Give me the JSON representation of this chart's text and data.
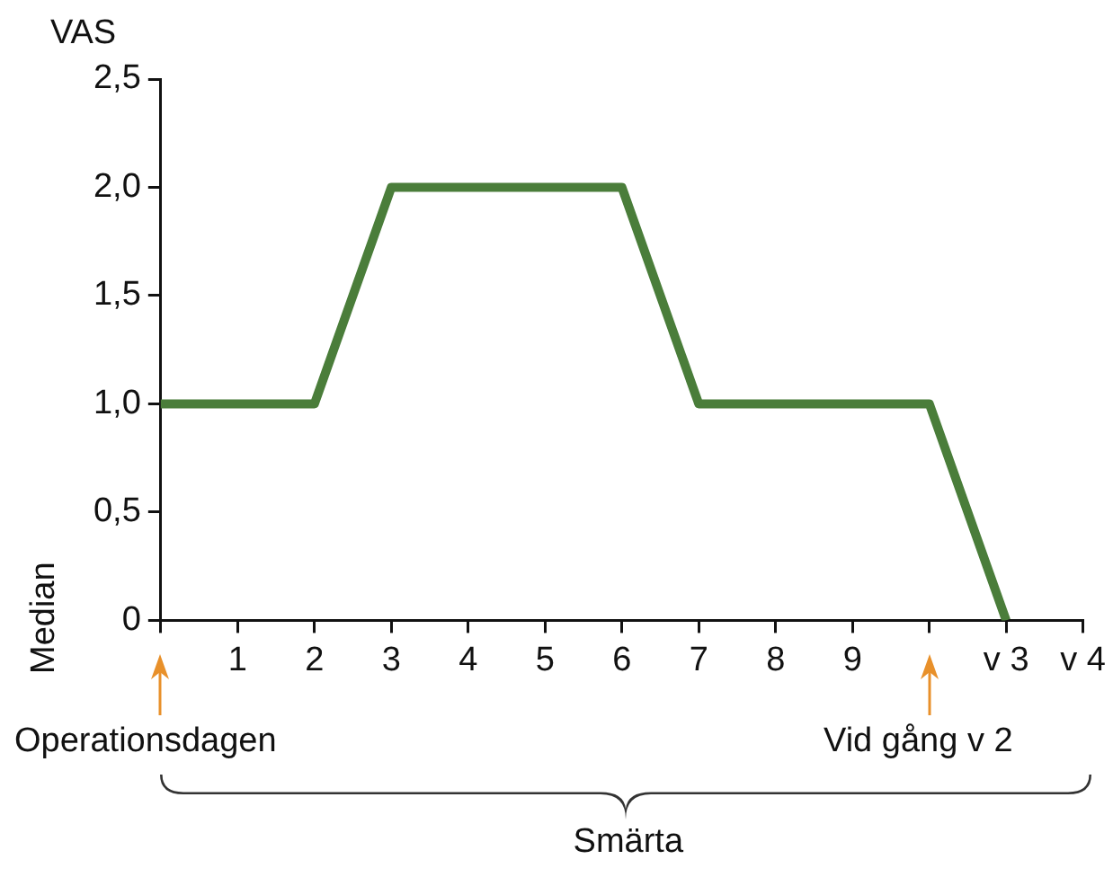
{
  "chart_data": {
    "type": "line",
    "xlabel": "Smärta",
    "ylabel": "Median",
    "annotations": [
      "VAS",
      "Operationsdagen",
      "Vid gång v 2"
    ],
    "categories": [
      null,
      "1",
      "2",
      "3",
      "4",
      "5",
      "6",
      "7",
      "8",
      "9",
      null,
      "v 3",
      "v 4"
    ],
    "series": [
      {
        "color": "#4a7d3a",
        "values": [
          1,
          1,
          1,
          2,
          2,
          2,
          2,
          1,
          1,
          1,
          1,
          0,
          null
        ]
      }
    ],
    "ylim": [
      0,
      2.5
    ],
    "yticks": [
      0,
      {
        "value": 0.5,
        "label": "0,5"
      },
      {
        "value": 1,
        "label": "1,0"
      },
      {
        "value": 1.5,
        "label": "1,5"
      },
      {
        "value": 2,
        "label": "2,0"
      },
      {
        "value": 2.5,
        "label": "2,5"
      }
    ],
    "grid": false,
    "legend": false,
    "marker": "none",
    "line_style": "solid"
  }
}
